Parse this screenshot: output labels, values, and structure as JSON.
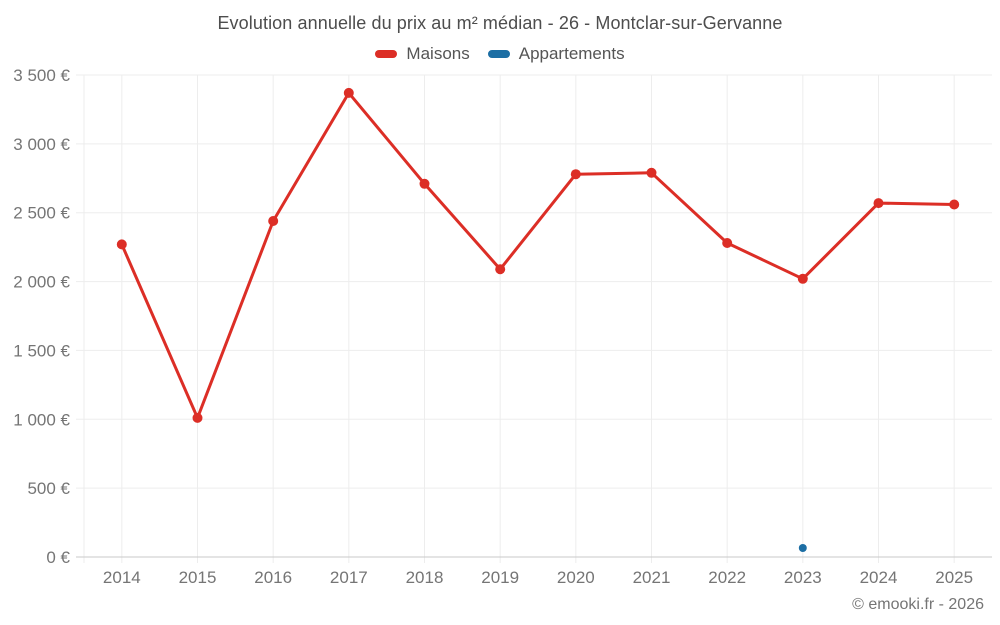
{
  "title": "Evolution annuelle du prix au m² médian - 26 - Montclar-sur-Gervanne",
  "watermark": "© emooki.fr - 2026",
  "legend": [
    {
      "name": "maisons",
      "label": "Maisons",
      "color": "#dc2e26"
    },
    {
      "name": "appartements",
      "label": "Appartements",
      "color": "#1c6ea4"
    }
  ],
  "colors": {
    "grid": "#ededed",
    "axis_line": "#c9c9c9",
    "tick_text": "#757575",
    "title_text": "#4d4d4d",
    "maisons_red": "#dc2e26",
    "appartements_blue": "#1c6ea4"
  },
  "chart_data": {
    "type": "line",
    "title": "Evolution annuelle du prix au m² médian - 26 - Montclar-sur-Gervanne",
    "categories": [
      "2014",
      "2015",
      "2016",
      "2017",
      "2018",
      "2019",
      "2020",
      "2021",
      "2022",
      "2023",
      "2024",
      "2025"
    ],
    "series": [
      {
        "name": "Maisons",
        "color": "#dc2e26",
        "point_radius": 5,
        "line_width": 3,
        "values": [
          2270,
          1010,
          2440,
          3370,
          2710,
          2090,
          2780,
          2790,
          2280,
          2020,
          2570,
          2560
        ]
      },
      {
        "name": "Appartements",
        "color": "#1c6ea4",
        "point_radius": 4,
        "line_width": 3,
        "values": [
          null,
          null,
          null,
          null,
          null,
          null,
          null,
          null,
          null,
          65,
          null,
          null
        ]
      }
    ],
    "xlabel": "",
    "ylabel": "",
    "ylim": [
      0,
      3500
    ],
    "yticks": [
      0,
      500,
      1000,
      1500,
      2000,
      2500,
      3000,
      3500
    ],
    "ytick_labels": [
      "0 €",
      "500 €",
      "1 000 €",
      "1 500 €",
      "2 000 €",
      "2 500 €",
      "3 000 €",
      "3 500 €"
    ],
    "grid": true,
    "legend_position": "top"
  }
}
